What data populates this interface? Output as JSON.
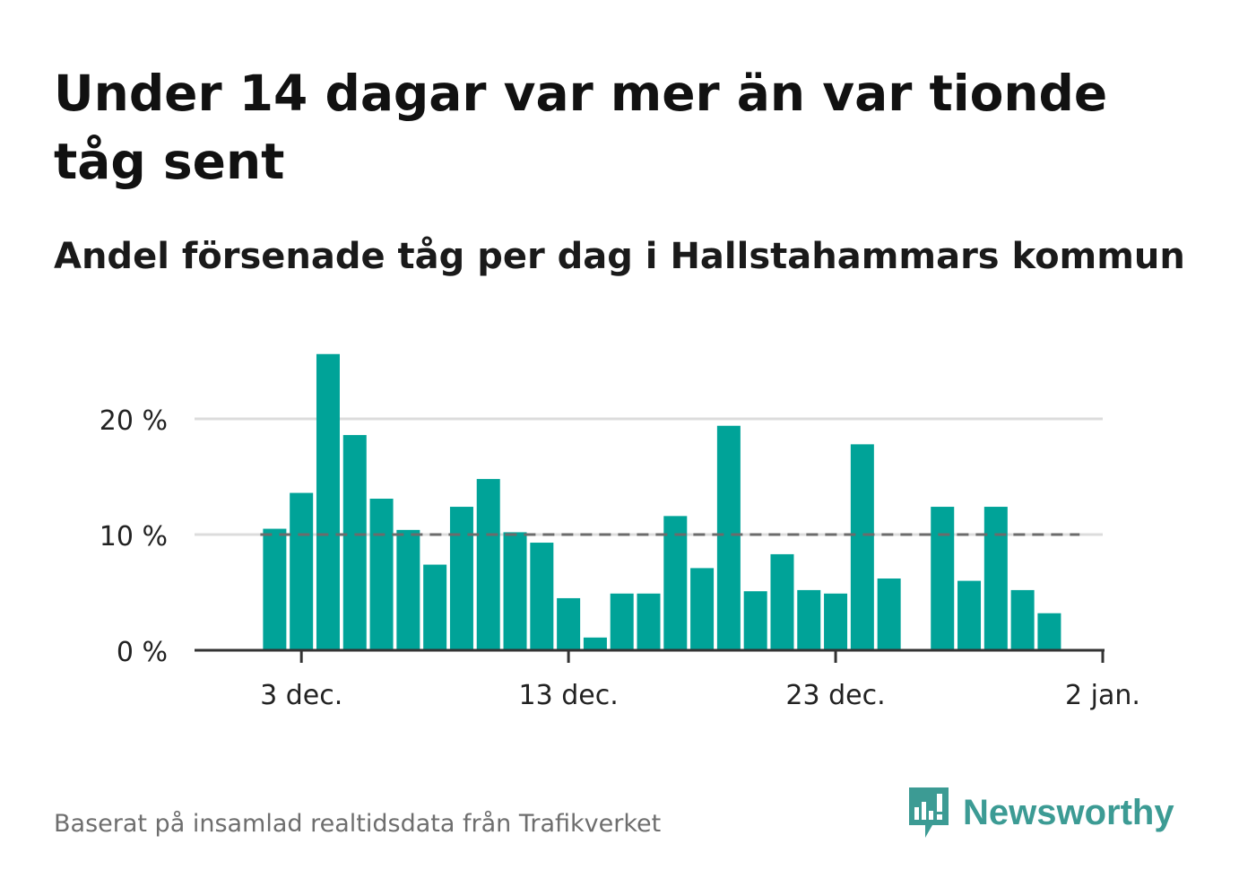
{
  "title": "Under 14 dagar var mer än var tionde tåg sent",
  "subtitle": "Andel försenade tåg per dag i Hallstahammars kommun",
  "footer": {
    "source": "Baserat på insamlad realtidsdata från Trafikverket",
    "brand": "Newsworthy"
  },
  "colors": {
    "bar": "#00a398",
    "grid": "#dcdcdc",
    "axis": "#333333",
    "reference_line": "#6b6b6b",
    "brand": "#3c9b94"
  },
  "chart_data": {
    "type": "bar",
    "x_unit": "date",
    "x": [
      "2023-12-02",
      "2023-12-03",
      "2023-12-04",
      "2023-12-05",
      "2023-12-06",
      "2023-12-07",
      "2023-12-08",
      "2023-12-09",
      "2023-12-10",
      "2023-12-11",
      "2023-12-12",
      "2023-12-13",
      "2023-12-14",
      "2023-12-15",
      "2023-12-16",
      "2023-12-17",
      "2023-12-18",
      "2023-12-19",
      "2023-12-20",
      "2023-12-21",
      "2023-12-22",
      "2023-12-23",
      "2023-12-24",
      "2023-12-25",
      "2023-12-26",
      "2023-12-27",
      "2023-12-28",
      "2023-12-29",
      "2023-12-30",
      "2023-12-31",
      "2024-01-01"
    ],
    "values": [
      10.5,
      13.6,
      25.6,
      18.6,
      13.1,
      10.4,
      7.4,
      12.4,
      14.8,
      10.2,
      9.3,
      4.5,
      1.1,
      4.9,
      4.9,
      11.6,
      7.1,
      19.4,
      5.1,
      8.3,
      5.2,
      4.9,
      17.8,
      6.2,
      null,
      12.4,
      6.0,
      12.4,
      5.2,
      3.2,
      null
    ],
    "reference_line": {
      "value": 10,
      "style": "dashed"
    },
    "ylim": [
      0,
      27
    ],
    "yticks": [
      0,
      10,
      20
    ],
    "ytick_labels": [
      "0 %",
      "10 %",
      "20 %"
    ],
    "xticks": [
      "2023-12-03",
      "2023-12-13",
      "2023-12-23",
      "2024-01-02"
    ],
    "xtick_labels": [
      "3 dec.",
      "13 dec.",
      "23 dec.",
      "2 jan."
    ],
    "xlim": [
      "2023-11-29",
      "2024-01-02"
    ],
    "grid": "horizontal"
  }
}
